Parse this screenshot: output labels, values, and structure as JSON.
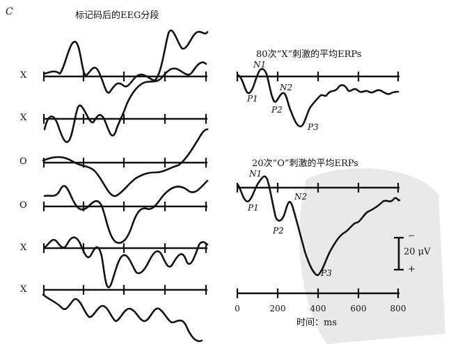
{
  "panel_label": "C",
  "left_title": "标记码后的EEG分段",
  "segment_labels": [
    "X",
    "X",
    "O",
    "O",
    "X",
    "X"
  ],
  "x_erp_title": "80次“X”刺激的平均ERPs",
  "o_erp_title": "20次“O”刺激的平均ERPs",
  "x_peaks": [
    "N1",
    "P1",
    "N2",
    "P2",
    "P3"
  ],
  "o_peaks": [
    "N1",
    "P1",
    "N2",
    "P2",
    "P3"
  ],
  "scale_bar": {
    "label": "20 μV",
    "minus": "−",
    "plus": "+"
  },
  "time_axis": {
    "ticks": [
      "0",
      "200",
      "400",
      "600",
      "800"
    ],
    "label": "时间：ms"
  }
}
